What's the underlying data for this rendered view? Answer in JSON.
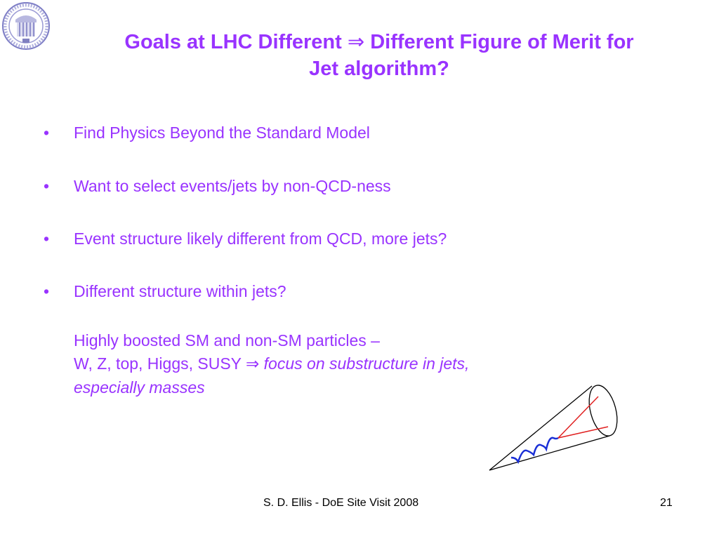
{
  "logo": {
    "icon": "university-seal",
    "color": "#6b6bb8"
  },
  "title": {
    "line1_a": "Goals at LHC Different ",
    "arrow": "⇒",
    "line1_b": " Different Figure of Merit for",
    "line2": "Jet algorithm?"
  },
  "bullets": [
    {
      "marker": "•",
      "text": "Find Physics Beyond the Standard Model"
    },
    {
      "marker": "•",
      "text": "Want to select events/jets by non-QCD-ness"
    },
    {
      "marker": "•",
      "text": "Event structure likely different from QCD, more jets?"
    },
    {
      "marker": "•",
      "text": "Different structure within jets?"
    }
  ],
  "sub": {
    "line1": "Highly boosted SM and non-SM particles –",
    "line2_a": "W, Z, top, Higgs, SUSY ",
    "arrow": "⇒",
    "line2_italic": " focus on substructure in jets,",
    "line3_italic": "especially masses"
  },
  "diagram": {
    "icon": "jet-cone",
    "cone_color": "#000000",
    "boson_color": "#1a2fd6",
    "decay_color": "#e02020"
  },
  "footer": {
    "credit": "S. D. Ellis - DoE Site Visit 2008",
    "page": "21"
  },
  "colors": {
    "text": "#9933ff"
  }
}
